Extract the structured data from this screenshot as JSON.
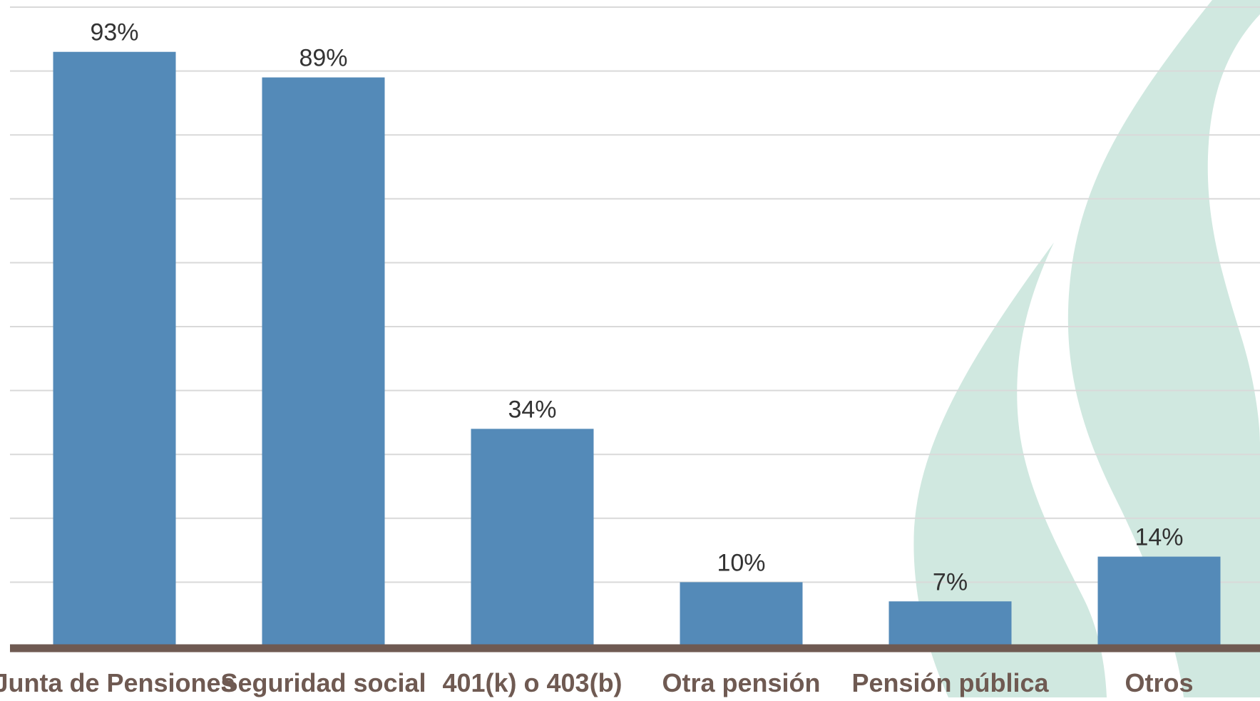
{
  "chart_data": {
    "type": "bar",
    "categories": [
      "Junta de Pensiones",
      "Seguridad social",
      "401(k) o 403(b)",
      "Otra pensión",
      "Pensión pública",
      "Otros"
    ],
    "values": [
      93,
      89,
      34,
      10,
      7,
      14
    ],
    "value_labels": [
      "93%",
      "89%",
      "34%",
      "10%",
      "7%",
      "14%"
    ],
    "title": "",
    "xlabel": "",
    "ylabel": "",
    "ylim": [
      0,
      100
    ],
    "grid": true,
    "legend": "none"
  },
  "colors": {
    "bar": "#548ab8",
    "baseline": "#6f5a52",
    "category_text": "#6f5a52",
    "value_text": "#333333",
    "grid": "#d9d9d9",
    "watermark": "#d0e8e0"
  },
  "background_art": "flame-watermark"
}
